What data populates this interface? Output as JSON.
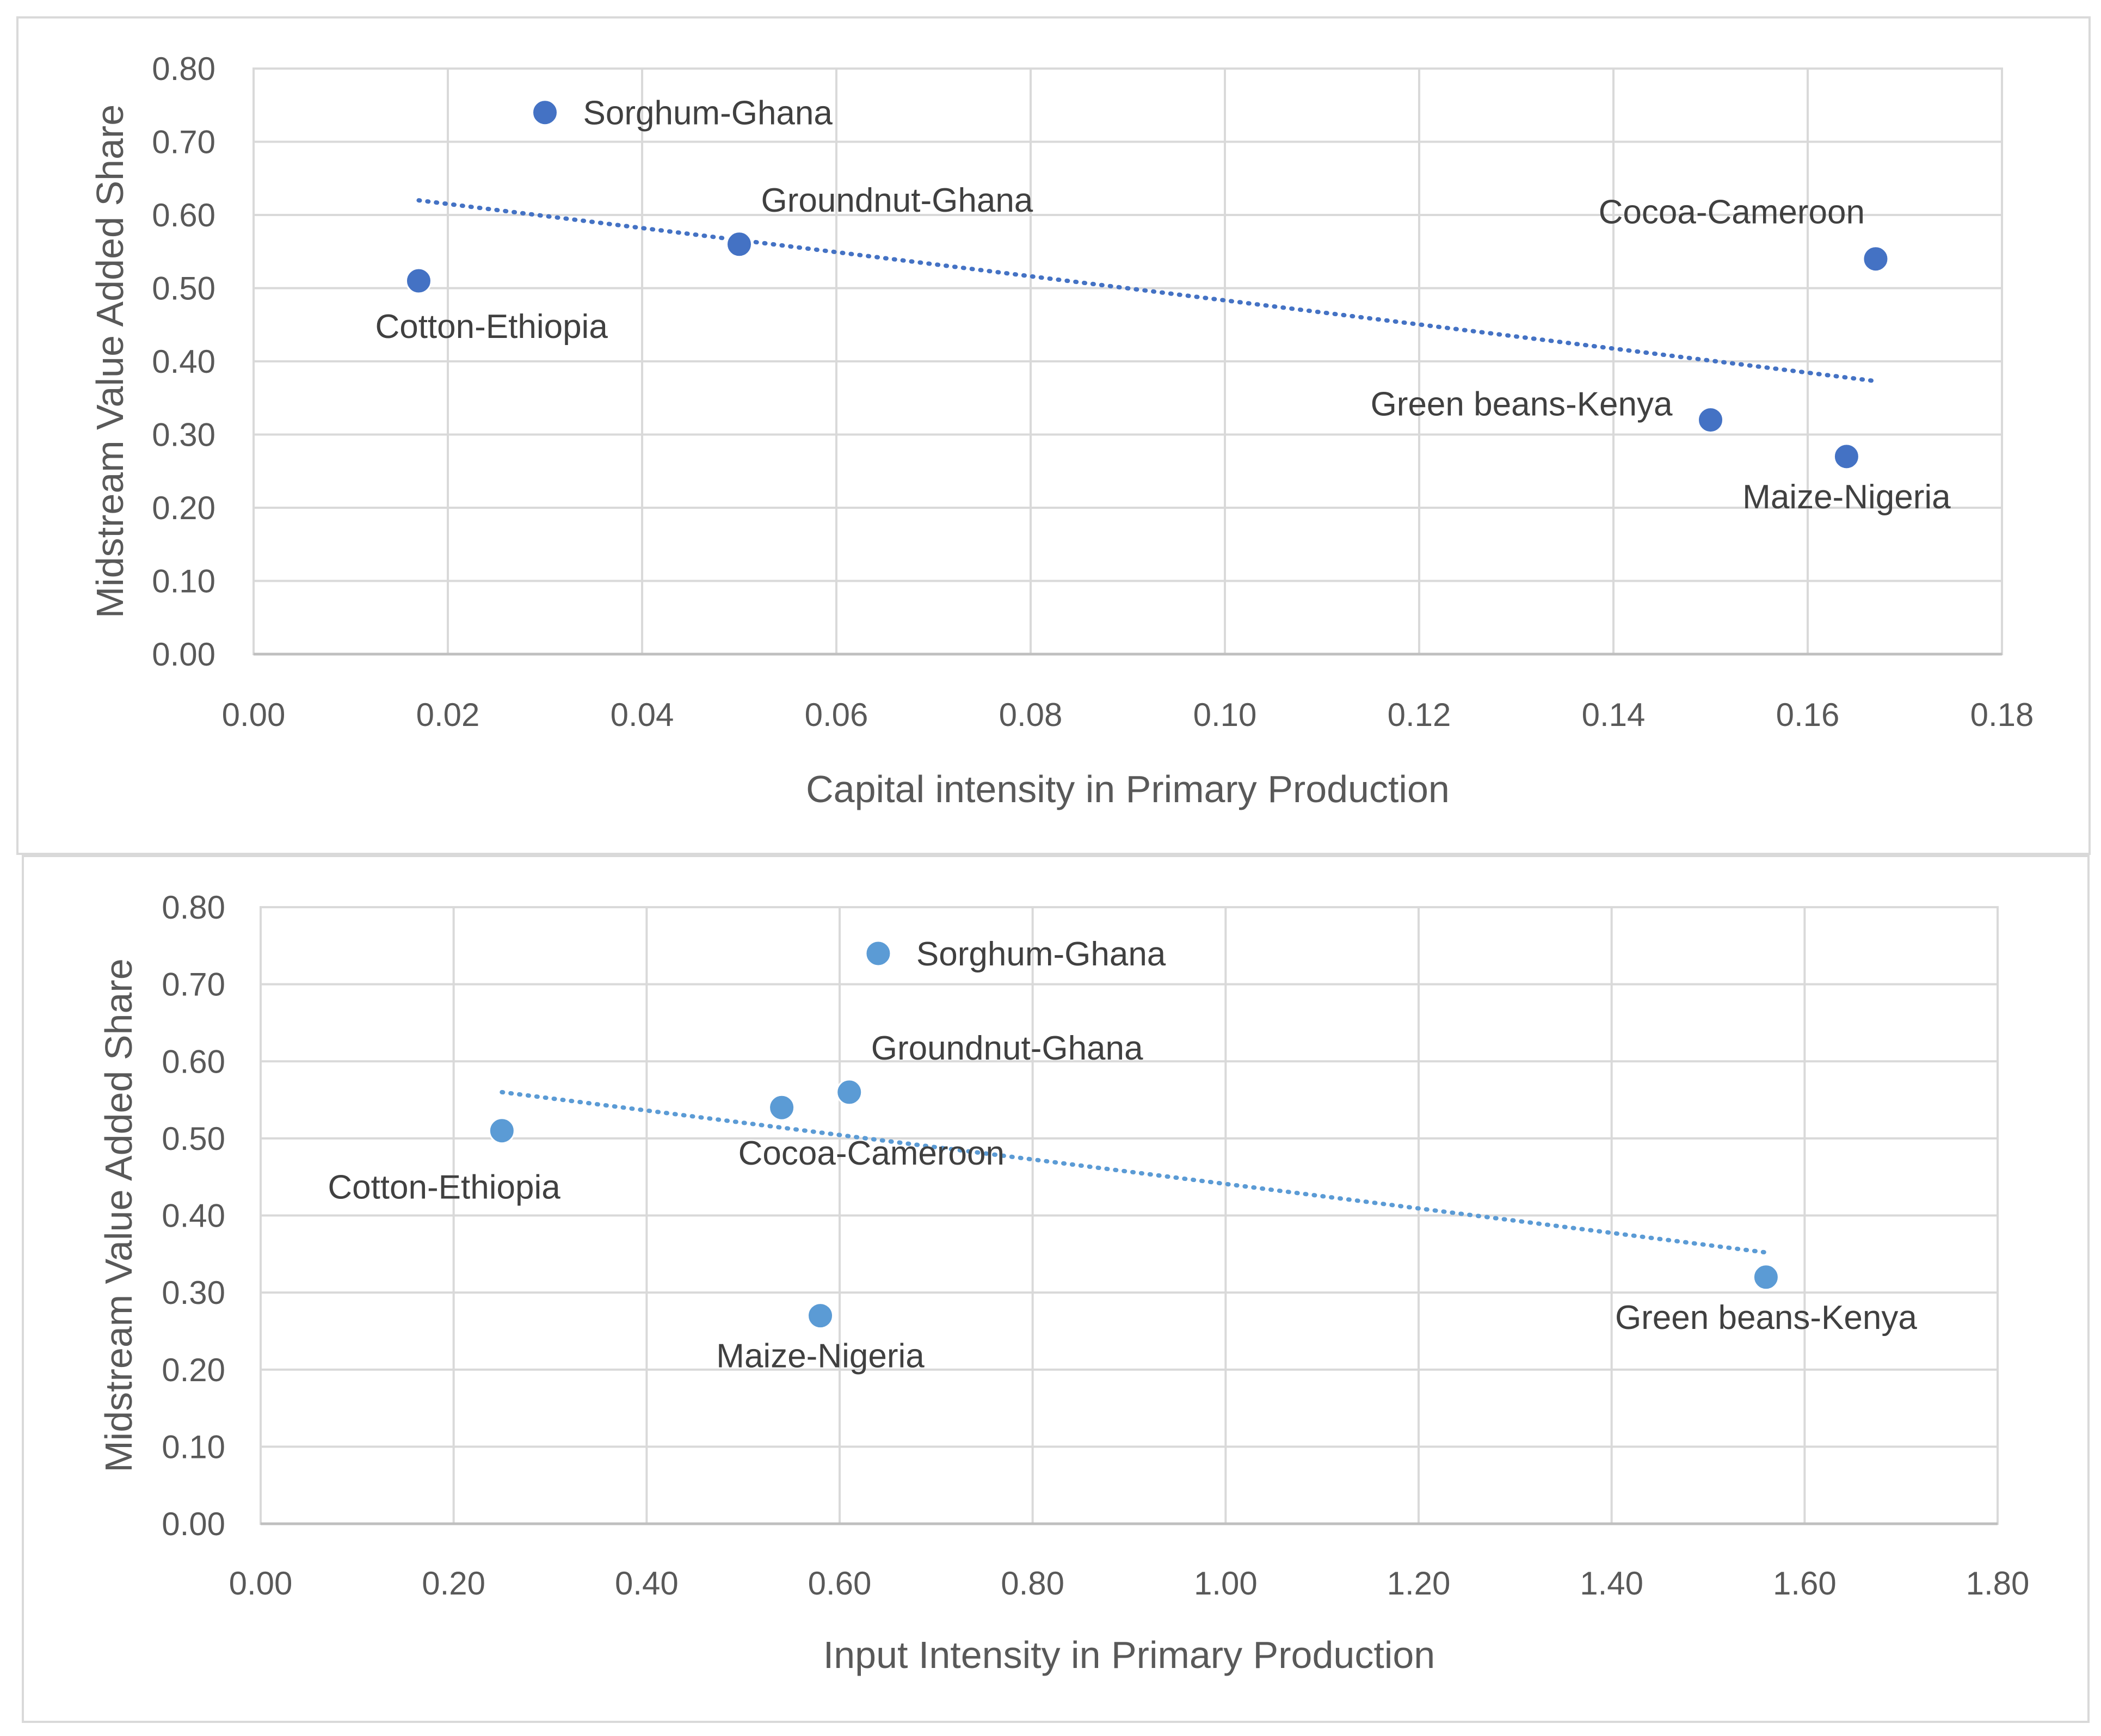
{
  "chart_data": [
    {
      "type": "scatter",
      "title": "",
      "xlabel": "Capital intensity in Primary Production",
      "ylabel": "Midstream Value Added Share",
      "xlim": [
        0,
        0.18
      ],
      "ylim": [
        0,
        0.8
      ],
      "x_ticks": [
        "0.00",
        "0.02",
        "0.04",
        "0.06",
        "0.08",
        "0.10",
        "0.12",
        "0.14",
        "0.16",
        "0.18"
      ],
      "y_ticks": [
        "0.00",
        "0.10",
        "0.20",
        "0.30",
        "0.40",
        "0.50",
        "0.60",
        "0.70",
        "0.80"
      ],
      "color": "#4472c4",
      "grid": true,
      "trendline": {
        "type": "linear",
        "x": [
          0.017,
          0.167
        ],
        "y": [
          0.62,
          0.373
        ]
      },
      "points": [
        {
          "label": "Sorghum-Ghana",
          "x": 0.03,
          "y": 0.74,
          "label_pos": "right"
        },
        {
          "label": "Groundnut-Ghana",
          "x": 0.05,
          "y": 0.56,
          "label_pos": "above-right"
        },
        {
          "label": "Cotton-Ethiopia",
          "x": 0.017,
          "y": 0.51,
          "label_pos": "below-right"
        },
        {
          "label": "Cocoa-Cameroon",
          "x": 0.167,
          "y": 0.54,
          "label_pos": "above-left"
        },
        {
          "label": "Green beans-Kenya",
          "x": 0.15,
          "y": 0.32,
          "label_pos": "left"
        },
        {
          "label": "Maize-Nigeria",
          "x": 0.164,
          "y": 0.27,
          "label_pos": "below"
        }
      ]
    },
    {
      "type": "scatter",
      "title": "",
      "xlabel": "Input Intensity in Primary Production",
      "ylabel": "Midstream Value Added Share",
      "xlim": [
        0,
        1.8
      ],
      "ylim": [
        0,
        0.8
      ],
      "x_ticks": [
        "0.00",
        "0.20",
        "0.40",
        "0.60",
        "0.80",
        "1.00",
        "1.20",
        "1.40",
        "1.60",
        "1.80"
      ],
      "y_ticks": [
        "0.00",
        "0.10",
        "0.20",
        "0.30",
        "0.40",
        "0.50",
        "0.60",
        "0.70",
        "0.80"
      ],
      "color": "#5b9bd5",
      "grid": true,
      "trendline": {
        "type": "linear",
        "x": [
          0.25,
          1.56
        ],
        "y": [
          0.56,
          0.352
        ]
      },
      "points": [
        {
          "label": "Sorghum-Ghana",
          "x": 0.64,
          "y": 0.74,
          "label_pos": "right"
        },
        {
          "label": "Groundnut-Ghana",
          "x": 0.61,
          "y": 0.56,
          "label_pos": "above-right"
        },
        {
          "label": "Cocoa-Cameroon",
          "x": 0.54,
          "y": 0.54,
          "label_pos": "below-right"
        },
        {
          "label": "Cotton-Ethiopia",
          "x": 0.25,
          "y": 0.51,
          "label_pos": "below-left"
        },
        {
          "label": "Maize-Nigeria",
          "x": 0.58,
          "y": 0.27,
          "label_pos": "below"
        },
        {
          "label": "Green beans-Kenya",
          "x": 1.56,
          "y": 0.32,
          "label_pos": "below"
        }
      ]
    }
  ]
}
